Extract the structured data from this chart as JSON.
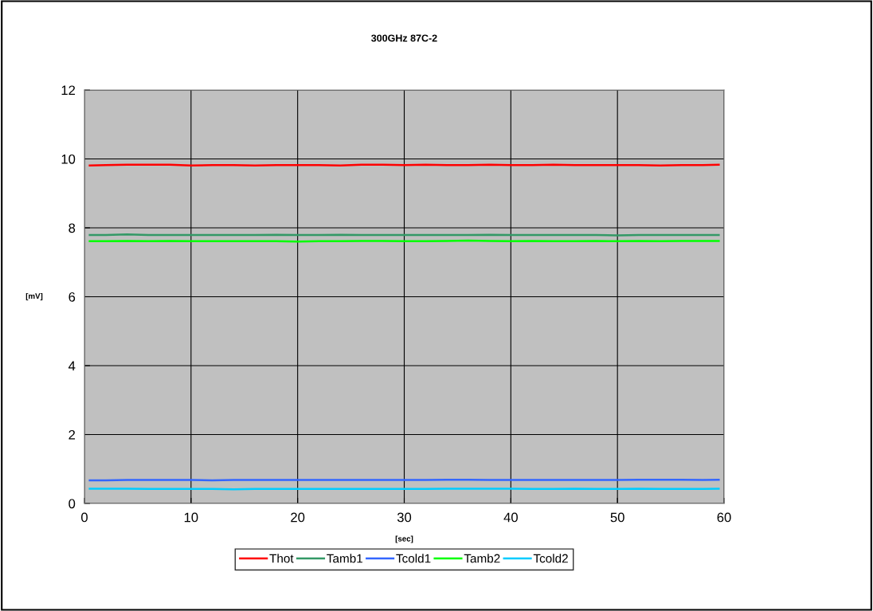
{
  "chart_data": {
    "type": "line",
    "title": "300GHz 87C-2",
    "xlabel": "[sec]",
    "ylabel": "[mV]",
    "x": [
      0.5,
      2,
      4,
      6,
      8,
      10,
      12,
      14,
      16,
      18,
      20,
      22,
      24,
      26,
      28,
      30,
      32,
      34,
      36,
      38,
      40,
      42,
      44,
      46,
      48,
      50,
      52,
      54,
      56,
      58,
      59.5
    ],
    "series": [
      {
        "name": "Thot",
        "color": "#ff0000",
        "values": [
          9.81,
          9.82,
          9.83,
          9.83,
          9.83,
          9.81,
          9.82,
          9.82,
          9.81,
          9.82,
          9.82,
          9.82,
          9.81,
          9.83,
          9.83,
          9.82,
          9.83,
          9.82,
          9.82,
          9.83,
          9.82,
          9.82,
          9.83,
          9.82,
          9.82,
          9.82,
          9.82,
          9.81,
          9.82,
          9.82,
          9.83
        ]
      },
      {
        "name": "Tamb1",
        "color": "#339966",
        "values": [
          7.79,
          7.79,
          7.81,
          7.79,
          7.79,
          7.79,
          7.79,
          7.79,
          7.79,
          7.8,
          7.79,
          7.79,
          7.8,
          7.79,
          7.79,
          7.79,
          7.79,
          7.79,
          7.79,
          7.8,
          7.79,
          7.79,
          7.79,
          7.79,
          7.79,
          7.78,
          7.79,
          7.79,
          7.79,
          7.79,
          7.79
        ]
      },
      {
        "name": "Tcold1",
        "color": "#3366ff",
        "values": [
          0.67,
          0.67,
          0.68,
          0.68,
          0.68,
          0.68,
          0.67,
          0.68,
          0.68,
          0.68,
          0.68,
          0.68,
          0.68,
          0.68,
          0.68,
          0.68,
          0.68,
          0.69,
          0.69,
          0.68,
          0.68,
          0.68,
          0.68,
          0.68,
          0.68,
          0.68,
          0.69,
          0.69,
          0.69,
          0.68,
          0.69
        ]
      },
      {
        "name": "Tamb2",
        "color": "#00ff00",
        "values": [
          7.61,
          7.61,
          7.62,
          7.61,
          7.62,
          7.61,
          7.61,
          7.61,
          7.61,
          7.61,
          7.6,
          7.61,
          7.61,
          7.62,
          7.62,
          7.61,
          7.61,
          7.62,
          7.63,
          7.62,
          7.61,
          7.62,
          7.61,
          7.61,
          7.62,
          7.61,
          7.62,
          7.61,
          7.62,
          7.62,
          7.62
        ]
      },
      {
        "name": "Tcold2",
        "color": "#00ccff",
        "values": [
          0.43,
          0.43,
          0.43,
          0.42,
          0.42,
          0.42,
          0.42,
          0.41,
          0.42,
          0.42,
          0.42,
          0.42,
          0.42,
          0.42,
          0.42,
          0.42,
          0.42,
          0.43,
          0.43,
          0.43,
          0.43,
          0.42,
          0.42,
          0.43,
          0.42,
          0.42,
          0.43,
          0.42,
          0.42,
          0.42,
          0.43
        ]
      }
    ],
    "xlim": [
      0,
      60
    ],
    "xticks": [
      0,
      10,
      20,
      30,
      40,
      50,
      60
    ],
    "ylim": [
      0,
      12
    ],
    "yticks": [
      0,
      2,
      4,
      6,
      8,
      10,
      12
    ],
    "grid": true,
    "legend": "bottom",
    "marker": "none",
    "line_style": "solid"
  }
}
